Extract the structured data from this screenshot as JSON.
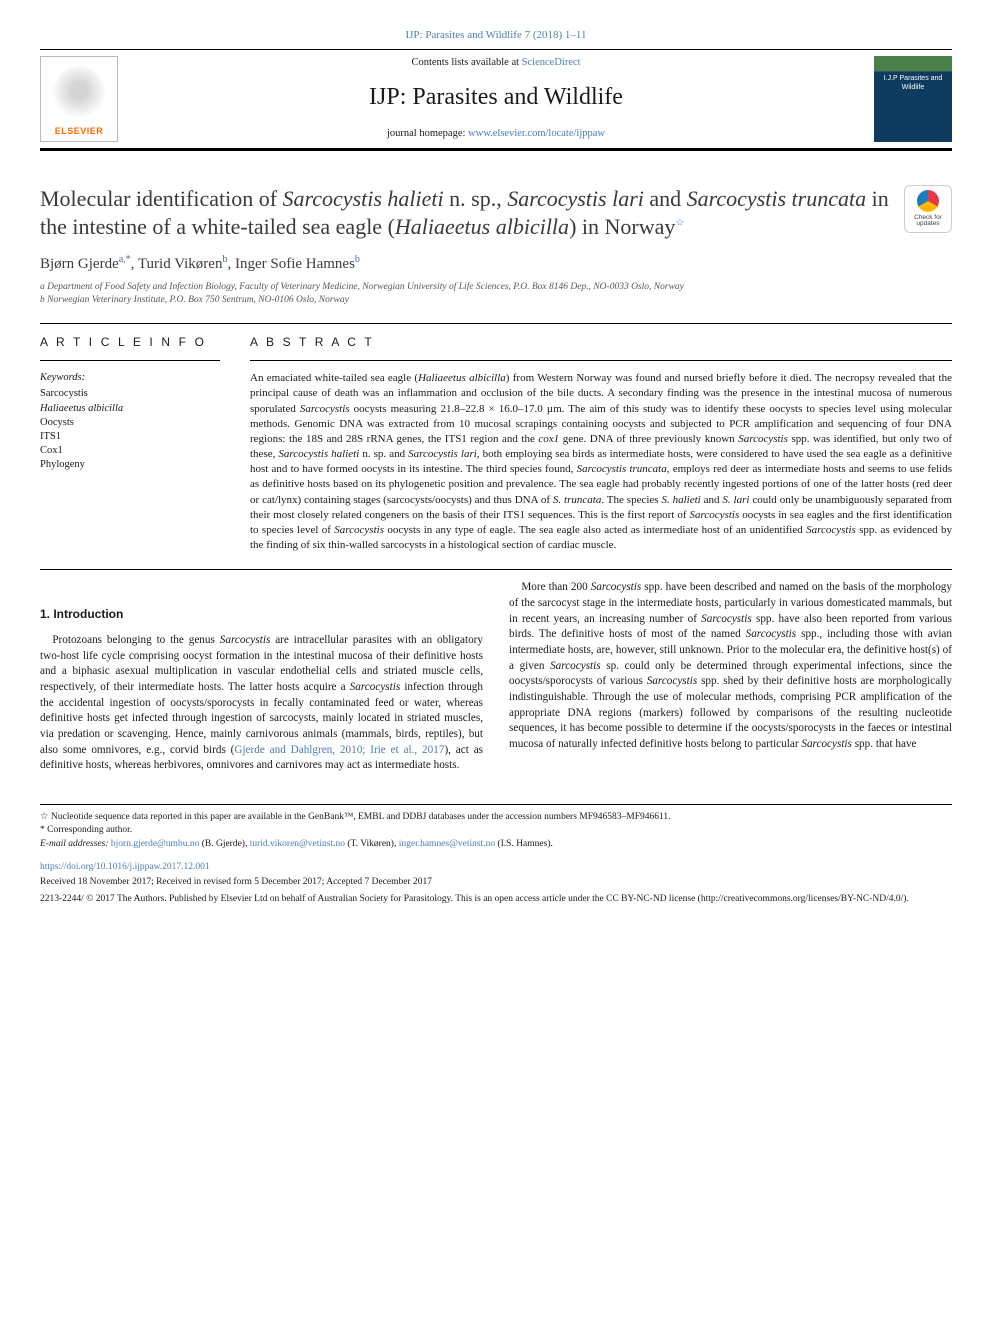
{
  "journal_ref": "IJP: Parasites and Wildlife 7 (2018) 1–11",
  "masthead": {
    "contents_prefix": "Contents lists available at ",
    "contents_link": "ScienceDirect",
    "journal_title": "IJP: Parasites and Wildlife",
    "homepage_prefix": "journal homepage: ",
    "homepage_link": "www.elsevier.com/locate/ijppaw",
    "brand": "ELSEVIER",
    "cover_text": "I.J.P\nParasites and Wildlife"
  },
  "colors": {
    "link": "#4a7eb8",
    "brand_orange": "#ff6a00",
    "cover_top": "#4a7e4a",
    "cover_bottom": "#0e3b5e"
  },
  "crossmark": {
    "label": "Check for updates"
  },
  "title_html": "Molecular identification of <em>Sarcocystis halieti</em> n. sp., <em>Sarcocystis lari</em> and <em>Sarcocystis truncata</em> in the intestine of a white-tailed sea eagle (<em>Haliaeetus albicilla</em>) in Norway<span class='affil-sup'>☆</span>",
  "authors_html": "Bjørn Gjerde<span class='affil-sup'>a,*</span>, Turid Vikøren<span class='affil-sup'>b</span>, Inger Sofie Hamnes<span class='affil-sup'>b</span>",
  "affiliations": [
    "a Department of Food Safety and Infection Biology, Faculty of Veterinary Medicine, Norwegian University of Life Sciences, P.O. Box 8146 Dep., NO-0033 Oslo, Norway",
    "b Norwegian Veterinary Institute, P.O. Box 750 Sentrum, NO-0106 Oslo, Norway"
  ],
  "article_info_head": "A R T I C L E  I N F O",
  "abstract_head": "A B S T R A C T",
  "keywords_head": "Keywords:",
  "keywords": [
    "Sarcocystis",
    "Haliaeetus albicilla",
    "Oocysts",
    "ITS1",
    "Cox1",
    "Phylogeny"
  ],
  "abstract_html": "An emaciated white-tailed sea eagle (<em>Haliaeetus albicilla</em>) from Western Norway was found and nursed briefly before it died. The necropsy revealed that the principal cause of death was an inflammation and occlusion of the bile ducts. A secondary finding was the presence in the intestinal mucosa of numerous sporulated <em>Sarcocystis</em> oocysts measuring 21.8–22.8 × 16.0–17.0 µm. The aim of this study was to identify these oocysts to species level using molecular methods. Genomic DNA was extracted from 10 mucosal scrapings containing oocysts and subjected to PCR amplification and sequencing of four DNA regions: the 18S and 28S rRNA genes, the ITS1 region and the <em>cox1</em> gene. DNA of three previously known <em>Sarcocystis</em> spp. was identified, but only two of these, <em>Sarcocystis halieti</em> n. sp. and <em>Sarcocystis lari</em>, both employing sea birds as intermediate hosts, were considered to have used the sea eagle as a definitive host and to have formed oocysts in its intestine. The third species found, <em>Sarcocystis truncata</em>, employs red deer as intermediate hosts and seems to use felids as definitive hosts based on its phylogenetic position and prevalence. The sea eagle had probably recently ingested portions of one of the latter hosts (red deer or cat/lynx) containing stages (sarcocysts/oocysts) and thus DNA of <em>S. truncata</em>. The species <em>S. halieti</em> and <em>S. lari</em> could only be unambiguously separated from their most closely related congeners on the basis of their ITS1 sequences. This is the first report of <em>Sarcocystis</em> oocysts in sea eagles and the first identification to species level of <em>Sarcocystis</em> oocysts in any type of eagle. The sea eagle also acted as intermediate host of an unidentified <em>Sarcocystis</em> spp. as evidenced by the finding of six thin-walled sarcocysts in a histological section of cardiac muscle.",
  "introduction_head": "1. Introduction",
  "intro_para1_html": "Protozoans belonging to the genus <em>Sarcocystis</em> are intracellular parasites with an obligatory two-host life cycle comprising oocyst formation in the intestinal mucosa of their definitive hosts and a biphasic asexual multiplication in vascular endothelial cells and striated muscle cells, respectively, of their intermediate hosts. The latter hosts acquire a <em>Sarcocystis</em> infection through the accidental ingestion of oocysts/sporocysts in fecally contaminated feed or water, whereas definitive hosts get infected through ingestion of sarcocysts, mainly located in striated muscles, via predation or scavenging. Hence, mainly carnivorous animals (mammals, birds, reptiles), but also some omnivores, e.g., corvid birds (<a href='#'>Gjerde and Dahlgren, 2010; Irie et al., 2017</a>), act as definitive hosts, whereas herbivores, omnivores and carnivores may act as intermediate hosts.",
  "intro_para2_html": "More than 200 <em>Sarcocystis</em> spp. have been described and named on the basis of the morphology of the sarcocyst stage in the intermediate hosts, particularly in various domesticated mammals, but in recent years, an increasing number of <em>Sarcocystis</em> spp. have also been reported from various birds. The definitive hosts of most of the named <em>Sarcocystis</em> spp., including those with avian intermediate hosts, are, however, still unknown. Prior to the molecular era, the definitive host(s) of a given <em>Sarcocystis</em> sp. could only be determined through experimental infections, since the oocysts/sporocysts of various <em>Sarcocystis</em> spp. shed by their definitive hosts are morphologically indistinguishable. Through the use of molecular methods, comprising PCR amplification of the appropriate DNA regions (markers) followed by comparisons of the resulting nucleotide sequences, it has become possible to determine if the oocysts/sporocysts in the faeces or intestinal mucosa of naturally infected definitive hosts belong to particular <em>Sarcocystis</em> spp. that have",
  "footnotes": {
    "star": "☆ Nucleotide sequence data reported in this paper are available in the GenBank™, EMBL and DDBJ databases under the accession numbers MF946583–MF946611.",
    "corresponding": "* Corresponding author.",
    "emails_prefix": "E-mail addresses: ",
    "emails_html": "<a href='#'>bjorn.gjerde@nmbu.no</a> (B. Gjerde), <a href='#'>turid.vikoren@vetinst.no</a> (T. Vikøren), <a href='#'>inger.hamnes@vetinst.no</a> (I.S. Hamnes).",
    "doi": "https://doi.org/10.1016/j.ijppaw.2017.12.001",
    "received": "Received 18 November 2017; Received in revised form 5 December 2017; Accepted 7 December 2017",
    "copyright": "2213-2244/ © 2017 The Authors. Published by Elsevier Ltd on behalf of Australian Society for Parasitology. This is an open access article under the CC BY-NC-ND license (http://creativecommons.org/licenses/BY-NC-ND/4.0/)."
  }
}
